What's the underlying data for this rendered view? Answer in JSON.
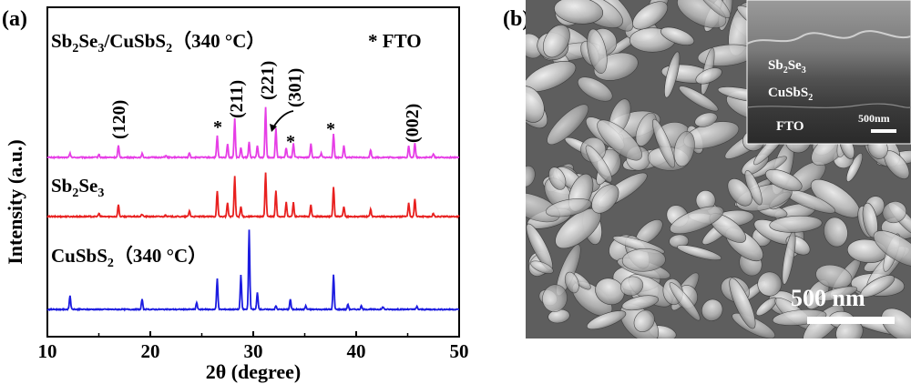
{
  "panel_a": {
    "panel_label": "(a)",
    "xlabel": "2θ (degree)",
    "ylabel": "Intensity (a.u.)",
    "xticks": [
      "10",
      "20",
      "30",
      "40",
      "50"
    ],
    "series_labels": {
      "composite_main": "Sb",
      "composite_sub1": "2",
      "composite_mid": "Se",
      "composite_sub2": "3",
      "composite_tail": "/CuSbS",
      "composite_sub3": "2",
      "composite_temp": "（340 °C）",
      "sb2se3_main": "Sb",
      "sb2se3_sub1": "2",
      "sb2se3_mid": "Se",
      "sb2se3_sub2": "3",
      "cusbs2_main": "CuSbS",
      "cusbs2_sub": "2",
      "cusbs2_temp": "（340 °C）"
    },
    "fto_legend": "* FTO",
    "peak_labels": [
      "(120)",
      "(211)",
      "(221)",
      "(301)",
      "(002)"
    ],
    "asterisk": "*",
    "colors": {
      "composite": "#e63ee6",
      "sb2se3": "#e8201f",
      "cusbs2": "#1c1ce0",
      "axis": "#000000"
    }
  },
  "panel_b": {
    "panel_label": "(b)",
    "scale_bar": "500 nm",
    "inset_layers": {
      "layer1_main": "Sb",
      "layer1_sub1": "2",
      "layer1_mid": "Se",
      "layer1_sub2": "3",
      "layer2_main": "CuSbS",
      "layer2_sub": "2",
      "layer3": "FTO"
    },
    "inset_scale": "500nm"
  },
  "chart_data": {
    "type": "line",
    "title": "",
    "xlabel": "2θ (degree)",
    "ylabel": "Intensity (a.u.)",
    "xlim": [
      10,
      50
    ],
    "series": [
      {
        "name": "Sb2Se3/CuSbS2 (340 °C)",
        "peaks": [
          [
            12.2,
            0.1
          ],
          [
            15.0,
            0.08
          ],
          [
            16.9,
            0.3
          ],
          [
            19.2,
            0.1
          ],
          [
            21.5,
            0.05
          ],
          [
            23.8,
            0.12
          ],
          [
            26.5,
            0.55
          ],
          [
            27.5,
            0.35
          ],
          [
            28.2,
            1.0
          ],
          [
            28.8,
            0.25
          ],
          [
            29.6,
            0.4
          ],
          [
            30.4,
            0.3
          ],
          [
            31.2,
            1.3
          ],
          [
            32.2,
            0.75
          ],
          [
            33.2,
            0.25
          ],
          [
            33.9,
            0.35
          ],
          [
            35.6,
            0.35
          ],
          [
            36.6,
            0.1
          ],
          [
            37.8,
            0.6
          ],
          [
            38.8,
            0.3
          ],
          [
            41.4,
            0.2
          ],
          [
            45.1,
            0.3
          ],
          [
            45.7,
            0.35
          ],
          [
            47.5,
            0.1
          ]
        ]
      },
      {
        "name": "Sb2Se3",
        "peaks": [
          [
            15.0,
            0.08
          ],
          [
            16.9,
            0.3
          ],
          [
            19.2,
            0.06
          ],
          [
            21.5,
            0.05
          ],
          [
            23.8,
            0.15
          ],
          [
            26.5,
            0.65
          ],
          [
            27.5,
            0.35
          ],
          [
            28.2,
            1.0
          ],
          [
            28.8,
            0.25
          ],
          [
            31.2,
            1.1
          ],
          [
            32.2,
            0.65
          ],
          [
            33.2,
            0.35
          ],
          [
            33.9,
            0.35
          ],
          [
            35.6,
            0.3
          ],
          [
            37.8,
            0.75
          ],
          [
            38.8,
            0.25
          ],
          [
            41.4,
            0.2
          ],
          [
            45.1,
            0.35
          ],
          [
            45.7,
            0.45
          ],
          [
            47.5,
            0.08
          ]
        ]
      },
      {
        "name": "CuSbS2 (340 °C)",
        "peaks": [
          [
            12.2,
            0.4
          ],
          [
            19.2,
            0.3
          ],
          [
            24.5,
            0.2
          ],
          [
            26.5,
            0.9
          ],
          [
            28.8,
            1.0
          ],
          [
            29.6,
            2.3
          ],
          [
            30.4,
            0.5
          ],
          [
            32.2,
            0.1
          ],
          [
            33.6,
            0.3
          ],
          [
            35.1,
            0.1
          ],
          [
            37.8,
            1.0
          ],
          [
            39.2,
            0.15
          ],
          [
            40.5,
            0.1
          ],
          [
            42.6,
            0.08
          ],
          [
            45.9,
            0.08
          ]
        ]
      }
    ]
  }
}
